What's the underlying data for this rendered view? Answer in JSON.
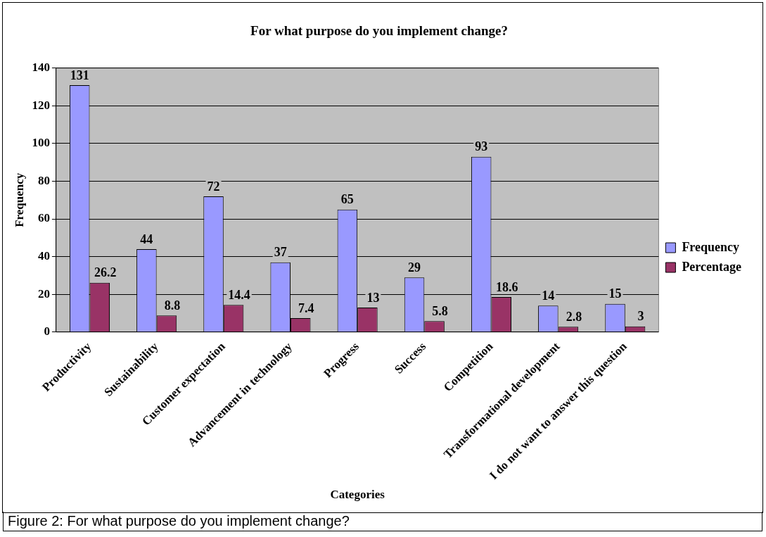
{
  "chart_data": {
    "type": "bar",
    "title": "For what purpose do you implement change?",
    "xlabel": "Categories",
    "ylabel": "Frequency",
    "categories": [
      "Productivity",
      "Sustainability",
      "Customer expectation",
      "Advancement in technology",
      "Progress",
      "Success",
      "Competition",
      "Transformational development",
      "I do not want to answer this question"
    ],
    "series": [
      {
        "name": "Frequency",
        "color": "#9999ff",
        "values": [
          131,
          44,
          72,
          37,
          65,
          29,
          93,
          14,
          15
        ]
      },
      {
        "name": "Percentage",
        "color": "#993366",
        "values": [
          26.2,
          8.8,
          14.4,
          7.4,
          13,
          5.8,
          18.6,
          2.8,
          3
        ]
      }
    ],
    "ylim": [
      0,
      140
    ],
    "yticks": [
      0,
      20,
      40,
      60,
      80,
      100,
      120,
      140
    ],
    "grid": "y",
    "legend": "right",
    "data_labels": true,
    "annotations": [
      "Figure 2: For what purpose do you implement change?"
    ]
  }
}
